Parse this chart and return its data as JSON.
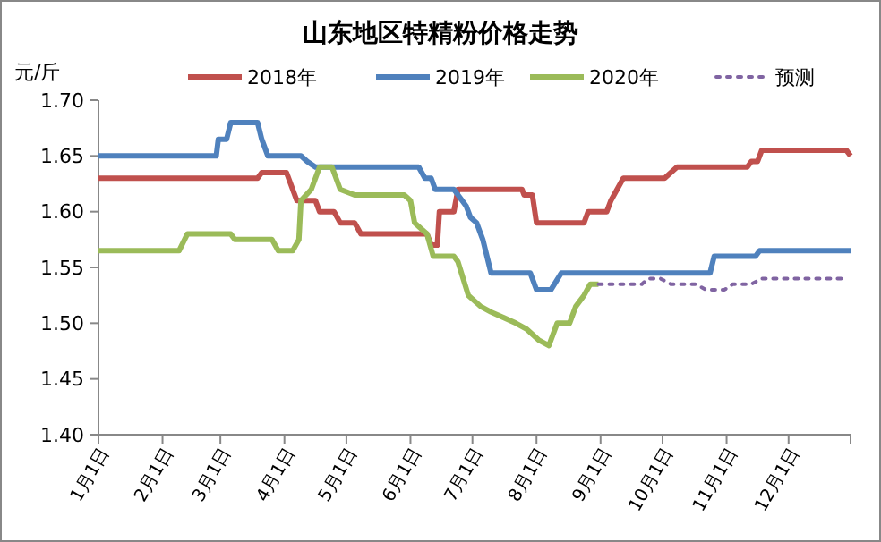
{
  "chart_data": {
    "type": "line",
    "title": "山东地区特精粉价格走势",
    "ylabel": "元/斤",
    "legend": "top",
    "grid": false,
    "marker": "none",
    "xlim": [
      "--01-01",
      "--12-31"
    ],
    "xticks": [
      {
        "value": "--01-01",
        "label": "1月1日"
      },
      {
        "value": "--02-01",
        "label": "2月1日"
      },
      {
        "value": "--03-01",
        "label": "3月1日"
      },
      {
        "value": "--04-01",
        "label": "4月1日"
      },
      {
        "value": "--05-01",
        "label": "5月1日"
      },
      {
        "value": "--06-01",
        "label": "6月1日"
      },
      {
        "value": "--07-01",
        "label": "7月1日"
      },
      {
        "value": "--08-01",
        "label": "8月1日"
      },
      {
        "value": "--09-01",
        "label": "9月1日"
      },
      {
        "value": "--10-01",
        "label": "10月1日"
      },
      {
        "value": "--11-01",
        "label": "11月1日"
      },
      {
        "value": "--12-01",
        "label": "12月1日"
      }
    ],
    "ylim": [
      1.4,
      1.7
    ],
    "yticks": [
      {
        "value": 1.4,
        "label": "1.40"
      },
      {
        "value": 1.45,
        "label": "1.45"
      },
      {
        "value": 1.5,
        "label": "1.50"
      },
      {
        "value": 1.55,
        "label": "1.55"
      },
      {
        "value": 1.6,
        "label": "1.60"
      },
      {
        "value": 1.65,
        "label": "1.65"
      },
      {
        "value": 1.7,
        "label": "1.70"
      }
    ],
    "series": [
      {
        "name": "2018年",
        "color": "#c0504d",
        "line_style": "solid",
        "x": [
          "--01-01",
          "--03-19",
          "--03-21",
          "--04-02",
          "--04-07",
          "--04-16",
          "--04-18",
          "--04-25",
          "--04-28",
          "--05-05",
          "--05-08",
          "--06-09",
          "--06-11",
          "--06-14",
          "--06-15",
          "--06-22",
          "--06-24",
          "--07-25",
          "--07-26",
          "--07-30",
          "--08-01",
          "--08-24",
          "--08-26",
          "--09-04",
          "--09-06",
          "--09-12",
          "--10-02",
          "--10-08",
          "--11-11",
          "--11-13",
          "--11-16",
          "--11-18",
          "--12-29",
          "--12-31"
        ],
        "values": [
          1.63,
          1.63,
          1.635,
          1.635,
          1.61,
          1.61,
          1.6,
          1.6,
          1.59,
          1.59,
          1.58,
          1.58,
          1.57,
          1.57,
          1.6,
          1.6,
          1.62,
          1.62,
          1.615,
          1.615,
          1.59,
          1.59,
          1.6,
          1.6,
          1.61,
          1.63,
          1.63,
          1.64,
          1.64,
          1.645,
          1.645,
          1.655,
          1.655,
          1.65
        ]
      },
      {
        "name": "2019年",
        "color": "#4f81bd",
        "line_style": "solid",
        "x": [
          "--01-01",
          "--02-27",
          "--02-28",
          "--03-04",
          "--03-06",
          "--03-19",
          "--03-21",
          "--03-24",
          "--04-09",
          "--04-12",
          "--04-16",
          "--06-05",
          "--06-08",
          "--06-11",
          "--06-13",
          "--06-22",
          "--06-24",
          "--06-28",
          "--06-30",
          "--07-03",
          "--07-06",
          "--07-10",
          "--07-29",
          "--08-01",
          "--08-08",
          "--08-13",
          "--10-24",
          "--10-26",
          "--11-15",
          "--11-17",
          "--12-31"
        ],
        "values": [
          1.65,
          1.65,
          1.665,
          1.665,
          1.68,
          1.68,
          1.665,
          1.65,
          1.65,
          1.645,
          1.64,
          1.64,
          1.63,
          1.63,
          1.62,
          1.62,
          1.615,
          1.605,
          1.595,
          1.59,
          1.575,
          1.545,
          1.545,
          1.53,
          1.53,
          1.545,
          1.545,
          1.56,
          1.56,
          1.565,
          1.565
        ]
      },
      {
        "name": "2020年",
        "color": "#9bbb59",
        "line_style": "solid",
        "x": [
          "--01-01",
          "--02-09",
          "--02-13",
          "--03-06",
          "--03-08",
          "--03-26",
          "--03-29",
          "--04-05",
          "--04-08",
          "--04-09",
          "--04-14",
          "--04-18",
          "--04-24",
          "--04-28",
          "--05-05",
          "--05-29",
          "--06-01",
          "--06-03",
          "--06-09",
          "--06-12",
          "--06-22",
          "--06-24",
          "--06-29",
          "--07-05",
          "--07-10",
          "--07-16",
          "--07-22",
          "--07-27",
          "--08-02",
          "--08-07",
          "--08-11",
          "--08-17",
          "--08-20",
          "--08-24",
          "--08-27",
          "--08-31"
        ],
        "values": [
          1.565,
          1.565,
          1.58,
          1.58,
          1.575,
          1.575,
          1.565,
          1.565,
          1.575,
          1.61,
          1.62,
          1.64,
          1.64,
          1.62,
          1.615,
          1.615,
          1.61,
          1.59,
          1.58,
          1.56,
          1.56,
          1.555,
          1.525,
          1.515,
          1.51,
          1.505,
          1.5,
          1.495,
          1.485,
          1.48,
          1.5,
          1.5,
          1.515,
          1.525,
          1.535,
          1.535
        ]
      },
      {
        "name": "预测",
        "color": "#8064a2",
        "line_style": "dotted",
        "x": [
          "--08-31",
          "--09-21",
          "--09-24",
          "--09-30",
          "--10-05",
          "--10-17",
          "--10-22",
          "--10-31",
          "--11-04",
          "--11-13",
          "--11-18",
          "--12-27"
        ],
        "values": [
          1.535,
          1.535,
          1.54,
          1.54,
          1.535,
          1.535,
          1.53,
          1.53,
          1.535,
          1.535,
          1.54,
          1.54
        ]
      }
    ]
  }
}
